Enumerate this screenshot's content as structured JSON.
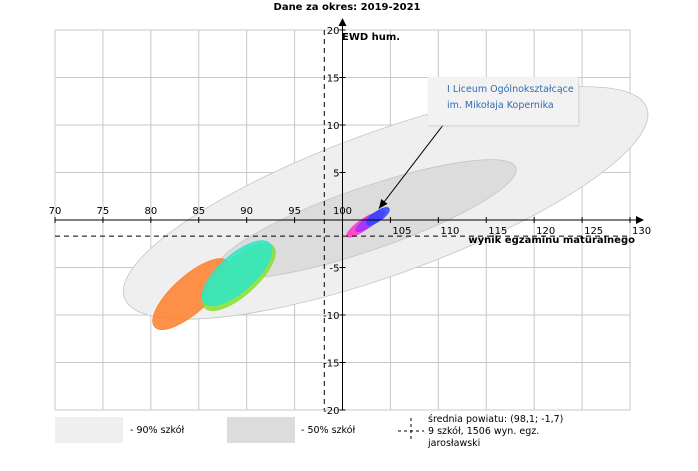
{
  "chart_data": {
    "type": "scatter",
    "title": "Dane za okres: 2019-2021",
    "xlabel": "wynik egzaminu maturalnego",
    "ylabel": "EWD hum.",
    "xlim": [
      70,
      130
    ],
    "ylim": [
      -20,
      20
    ],
    "xticks": [
      "70",
      "75",
      "80",
      "85",
      "90",
      "95",
      "100",
      "105",
      "110",
      "115",
      "120",
      "125",
      "130"
    ],
    "yticks": [
      "-20",
      "-15",
      "-10",
      "-5",
      "0",
      "5",
      "10",
      "15",
      "20"
    ],
    "grid": true,
    "mean": {
      "x": 98.1,
      "y": -1.7
    },
    "regions": [
      {
        "name": "90% szkół",
        "color": "#efefef",
        "cx": 104.5,
        "cy": 1.8,
        "rx": 29,
        "ry": 7.5,
        "angle_deg": -20
      },
      {
        "name": "50% szkół",
        "color": "#dcdcdc",
        "cx": 102.5,
        "cy": 0.1,
        "rx": 16.5,
        "ry": 3.3,
        "angle_deg": -19
      }
    ],
    "schools": [
      {
        "color": "#ff7f2a",
        "cx": 84.2,
        "cy": -7.8,
        "rx": 5.1,
        "ry": 1.9,
        "angle_deg": -42
      },
      {
        "color": "#88e030",
        "cx": 89.2,
        "cy": -6.0,
        "rx": 4.8,
        "ry": 1.9,
        "angle_deg": -42
      },
      {
        "color": "#2ee6c8",
        "cx": 89.0,
        "cy": -5.6,
        "rx": 4.6,
        "ry": 1.9,
        "angle_deg": -42
      },
      {
        "color": "#ff33cc",
        "cx": 102.2,
        "cy": -0.5,
        "rx": 2.1,
        "ry": 0.55,
        "angle_deg": -35
      },
      {
        "color": "#9a33ff",
        "cx": 102.9,
        "cy": -0.1,
        "rx": 1.8,
        "ry": 0.5,
        "angle_deg": -35
      },
      {
        "color": "#3344ff",
        "cx": 103.7,
        "cy": 0.4,
        "rx": 1.4,
        "ry": 0.5,
        "angle_deg": -35
      }
    ],
    "annotation": {
      "lines": [
        "I Liceum Ogólnokształcące",
        "im. Mikołaja Kopernika"
      ],
      "target": {
        "x": 103.8,
        "y": 1.2
      },
      "arrow_from": {
        "x": 110.5,
        "y": 10.0
      }
    },
    "legend": {
      "p90_label": "- 90% szkół",
      "p50_label": "- 50% szkół",
      "mean_line1": "średnia powiatu: (98,1; -1,7)",
      "mean_line2": "9 szkół, 1506 wyn. egz.",
      "mean_line3": "jarosławski"
    }
  }
}
